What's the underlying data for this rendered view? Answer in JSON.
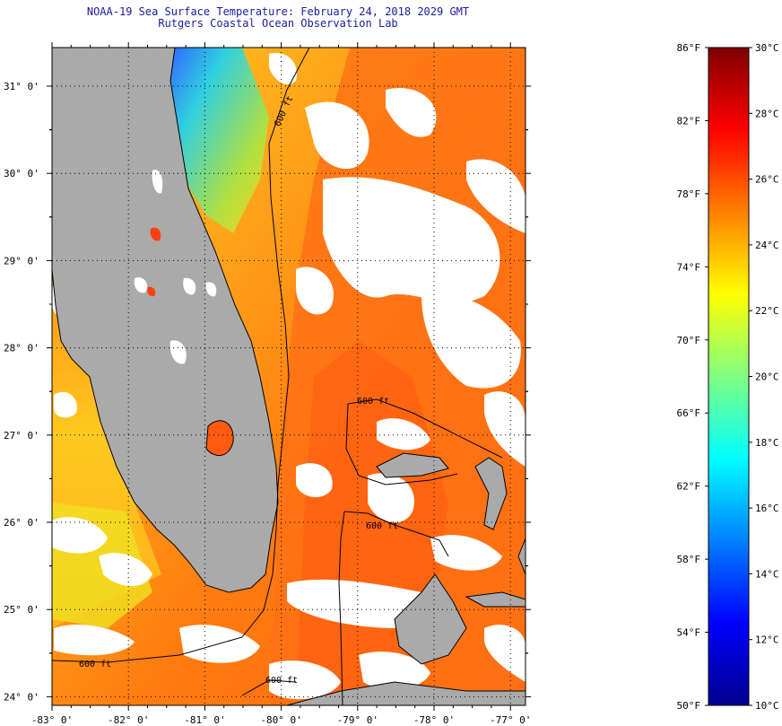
{
  "header": {
    "title": "NOAA-19 Sea Surface Temperature:  February 24, 2018 2029 GMT",
    "subtitle": "Rutgers Coastal Ocean Observation Lab"
  },
  "map": {
    "lat_ticks": [
      "31° 0'",
      "30° 0'",
      "29° 0'",
      "28° 0'",
      "27° 0'",
      "26° 0'",
      "25° 0'",
      "24° 0'"
    ],
    "lon_ticks": [
      "-83° 0'",
      "-82° 0'",
      "-81° 0'",
      "-80° 0'",
      "-79° 0'",
      "-78° 0'",
      "-77° 0'"
    ],
    "contour_labels": [
      "600 ft",
      "600 ft",
      "600 ft",
      "600 ft",
      "600 ft"
    ],
    "colors": {
      "land": "#aaaaaa",
      "cloud": "#ffffff",
      "sst_warm": "#ff6a10",
      "sst_mid": "#ffa018",
      "sst_cool": "#f0e020",
      "sst_cold": "#40d0d0"
    }
  },
  "colorbar": {
    "fahrenheit_labels": [
      "86°F",
      "82°F",
      "78°F",
      "74°F",
      "70°F",
      "66°F",
      "62°F",
      "58°F",
      "54°F",
      "50°F"
    ],
    "celsius_labels": [
      "30°C",
      "28°C",
      "26°C",
      "24°C",
      "22°C",
      "20°C",
      "18°C",
      "16°C",
      "14°C",
      "12°C",
      "10°C"
    ],
    "range_f": [
      50,
      86
    ],
    "range_c": [
      10,
      30
    ]
  }
}
